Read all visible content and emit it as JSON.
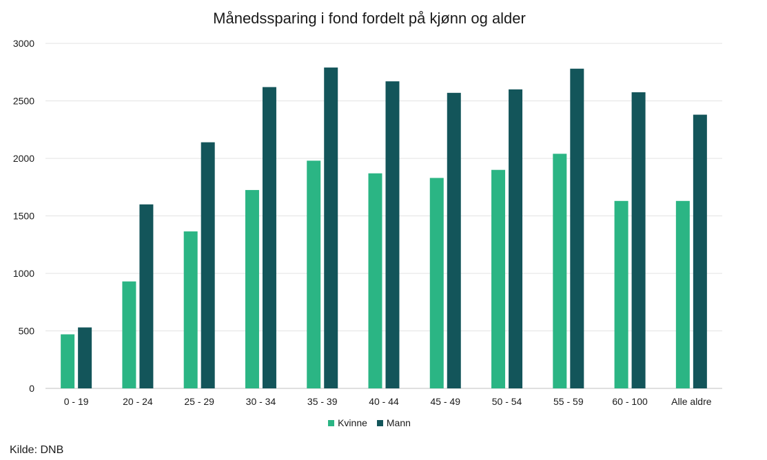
{
  "chart_data": {
    "type": "bar",
    "title": "Månedssparing i fond fordelt på kjønn og alder",
    "categories": [
      "0 - 19",
      "20 - 24",
      "25 - 29",
      "30 - 34",
      "35 - 39",
      "40 - 44",
      "45 - 49",
      "50 - 54",
      "55 - 59",
      "60 - 100",
      "Alle aldre"
    ],
    "series": [
      {
        "name": "Kvinne",
        "color": "#2bb584",
        "values": [
          470,
          930,
          1365,
          1725,
          1980,
          1870,
          1830,
          1900,
          2040,
          1630,
          1630
        ]
      },
      {
        "name": "Mann",
        "color": "#13555a",
        "values": [
          530,
          1600,
          2140,
          2620,
          2790,
          2670,
          2570,
          2600,
          2780,
          2575,
          2380
        ]
      }
    ],
    "yticks": [
      0,
      500,
      1000,
      1500,
      2000,
      2500,
      3000
    ],
    "ylim": [
      0,
      3000
    ],
    "grid": true,
    "legend_position": "bottom"
  },
  "source": "Kilde: DNB"
}
